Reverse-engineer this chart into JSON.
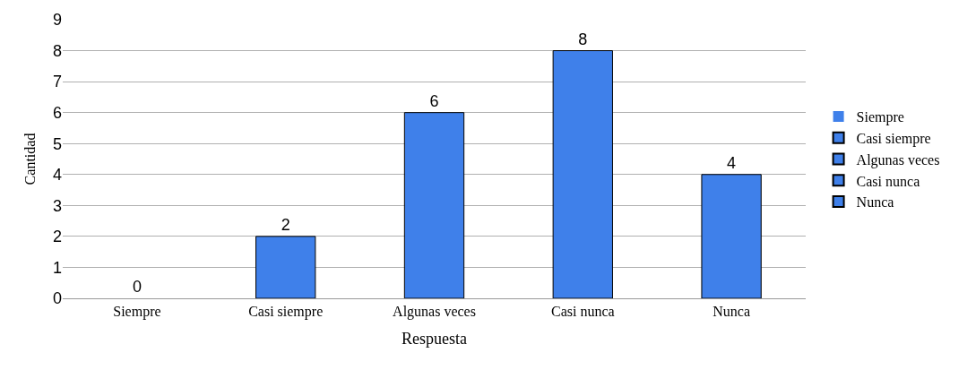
{
  "chart_data": {
    "type": "bar",
    "xlabel": "Respuesta",
    "ylabel": "Cantidad",
    "categories": [
      "Siempre",
      "Casi siempre",
      "Algunas veces",
      "Casi nunca",
      "Nunca"
    ],
    "series": [
      {
        "name": "Siempre",
        "color": "#3f80ea",
        "values": [
          0,
          null,
          null,
          null,
          null
        ]
      },
      {
        "name": "Casi siempre",
        "color": "#3f80ea",
        "values": [
          null,
          2,
          null,
          null,
          null
        ]
      },
      {
        "name": "Algunas veces",
        "color": "#3f80ea",
        "values": [
          null,
          null,
          6,
          null,
          null
        ]
      },
      {
        "name": "Casi nunca",
        "color": "#3f80ea",
        "values": [
          null,
          null,
          null,
          8,
          null
        ]
      },
      {
        "name": "Nunca",
        "color": "#3f80ea",
        "values": [
          null,
          null,
          null,
          null,
          4
        ]
      }
    ],
    "ylim": [
      0,
      9
    ],
    "yticks": [
      0,
      1,
      2,
      3,
      4,
      5,
      6,
      7,
      8,
      9
    ],
    "grid": "y",
    "legend": "right",
    "data_labels": true
  }
}
